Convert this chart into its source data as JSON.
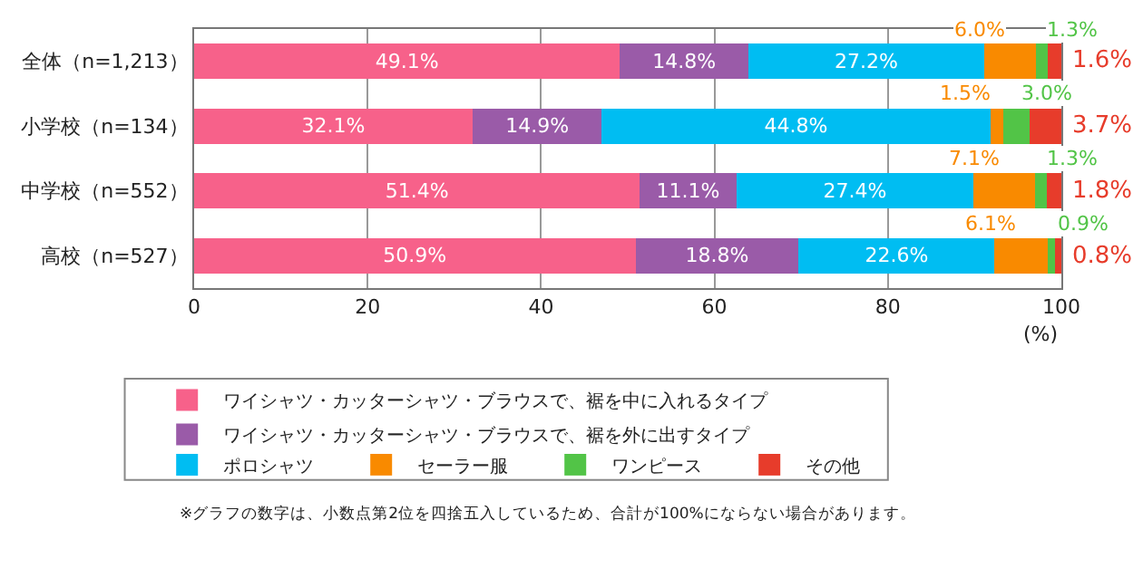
{
  "chart_data": {
    "type": "bar",
    "orientation": "horizontal",
    "stacked": true,
    "categories": [
      "全体（n=1,213）",
      "小学校（n=134）",
      "中学校（n=552）",
      "高校（n=527）"
    ],
    "series": [
      {
        "name": "ワイシャツ・カッターシャツ・ブラウスで、裾を中に入れるタイプ",
        "color": "#f7618a",
        "values": [
          49.1,
          32.1,
          51.4,
          50.9
        ],
        "value_labels": [
          "49.1%",
          "32.1%",
          "51.4%",
          "50.9%"
        ]
      },
      {
        "name": "ワイシャツ・カッターシャツ・ブラウスで、裾を外に出すタイプ",
        "color": "#9a5ba8",
        "values": [
          14.8,
          14.9,
          11.1,
          18.8
        ],
        "value_labels": [
          "14.8%",
          "14.9%",
          "11.1%",
          "18.8%"
        ]
      },
      {
        "name": "ポロシャツ",
        "color": "#00bdf2",
        "values": [
          27.2,
          44.8,
          27.4,
          22.6
        ],
        "value_labels": [
          "27.2%",
          "44.8%",
          "27.4%",
          "22.6%"
        ]
      },
      {
        "name": "セーラー服",
        "color": "#f98a00",
        "values": [
          6.0,
          1.5,
          7.1,
          6.1
        ],
        "value_labels": [
          "6.0%",
          "1.5%",
          "7.1%",
          "6.1%"
        ]
      },
      {
        "name": "ワンピース",
        "color": "#52c447",
        "values": [
          1.3,
          3.0,
          1.3,
          0.9
        ],
        "value_labels": [
          "1.3%",
          "3.0%",
          "1.3%",
          "0.9%"
        ]
      },
      {
        "name": "その他",
        "color": "#e73c2b",
        "values": [
          1.6,
          3.7,
          1.8,
          0.8
        ],
        "value_labels": [
          "1.6%",
          "3.7%",
          "1.8%",
          "0.8%"
        ]
      }
    ],
    "xlim": [
      0,
      100
    ],
    "xticks": [
      0,
      20,
      40,
      60,
      80,
      100
    ],
    "xlabel": "(%)",
    "grid": "x",
    "legend": "bottom",
    "annotations": [
      "※グラフの数字は、小数点第2位を四捨五入しているため、合計が100%にならない場合があります。"
    ]
  }
}
